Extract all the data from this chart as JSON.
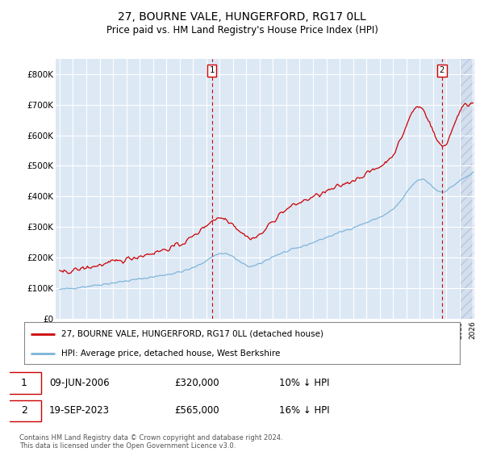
{
  "title": "27, BOURNE VALE, HUNGERFORD, RG17 0LL",
  "subtitle": "Price paid vs. HM Land Registry's House Price Index (HPI)",
  "ylim": [
    0,
    850000
  ],
  "yticks": [
    0,
    100000,
    200000,
    300000,
    400000,
    500000,
    600000,
    700000,
    800000
  ],
  "ytick_labels": [
    "£0",
    "£100K",
    "£200K",
    "£300K",
    "£400K",
    "£500K",
    "£600K",
    "£700K",
    "£800K"
  ],
  "hpi_color": "#7ab3d8",
  "price_color": "#cc0000",
  "bg_color": "#dde8f5",
  "grid_color": "#ffffff",
  "sale1_label": "09-JUN-2006",
  "sale1_price_str": "£320,000",
  "sale1_pct": "10% ↓ HPI",
  "sale2_label": "19-SEP-2023",
  "sale2_price_str": "£565,000",
  "sale2_pct": "16% ↓ HPI",
  "legend_line1": "27, BOURNE VALE, HUNGERFORD, RG17 0LL (detached house)",
  "legend_line2": "HPI: Average price, detached house, West Berkshire",
  "footer": "Contains HM Land Registry data © Crown copyright and database right 2024.\nThis data is licensed under the Open Government Licence v3.0.",
  "xstart_year": 1995,
  "xend_year": 2026
}
